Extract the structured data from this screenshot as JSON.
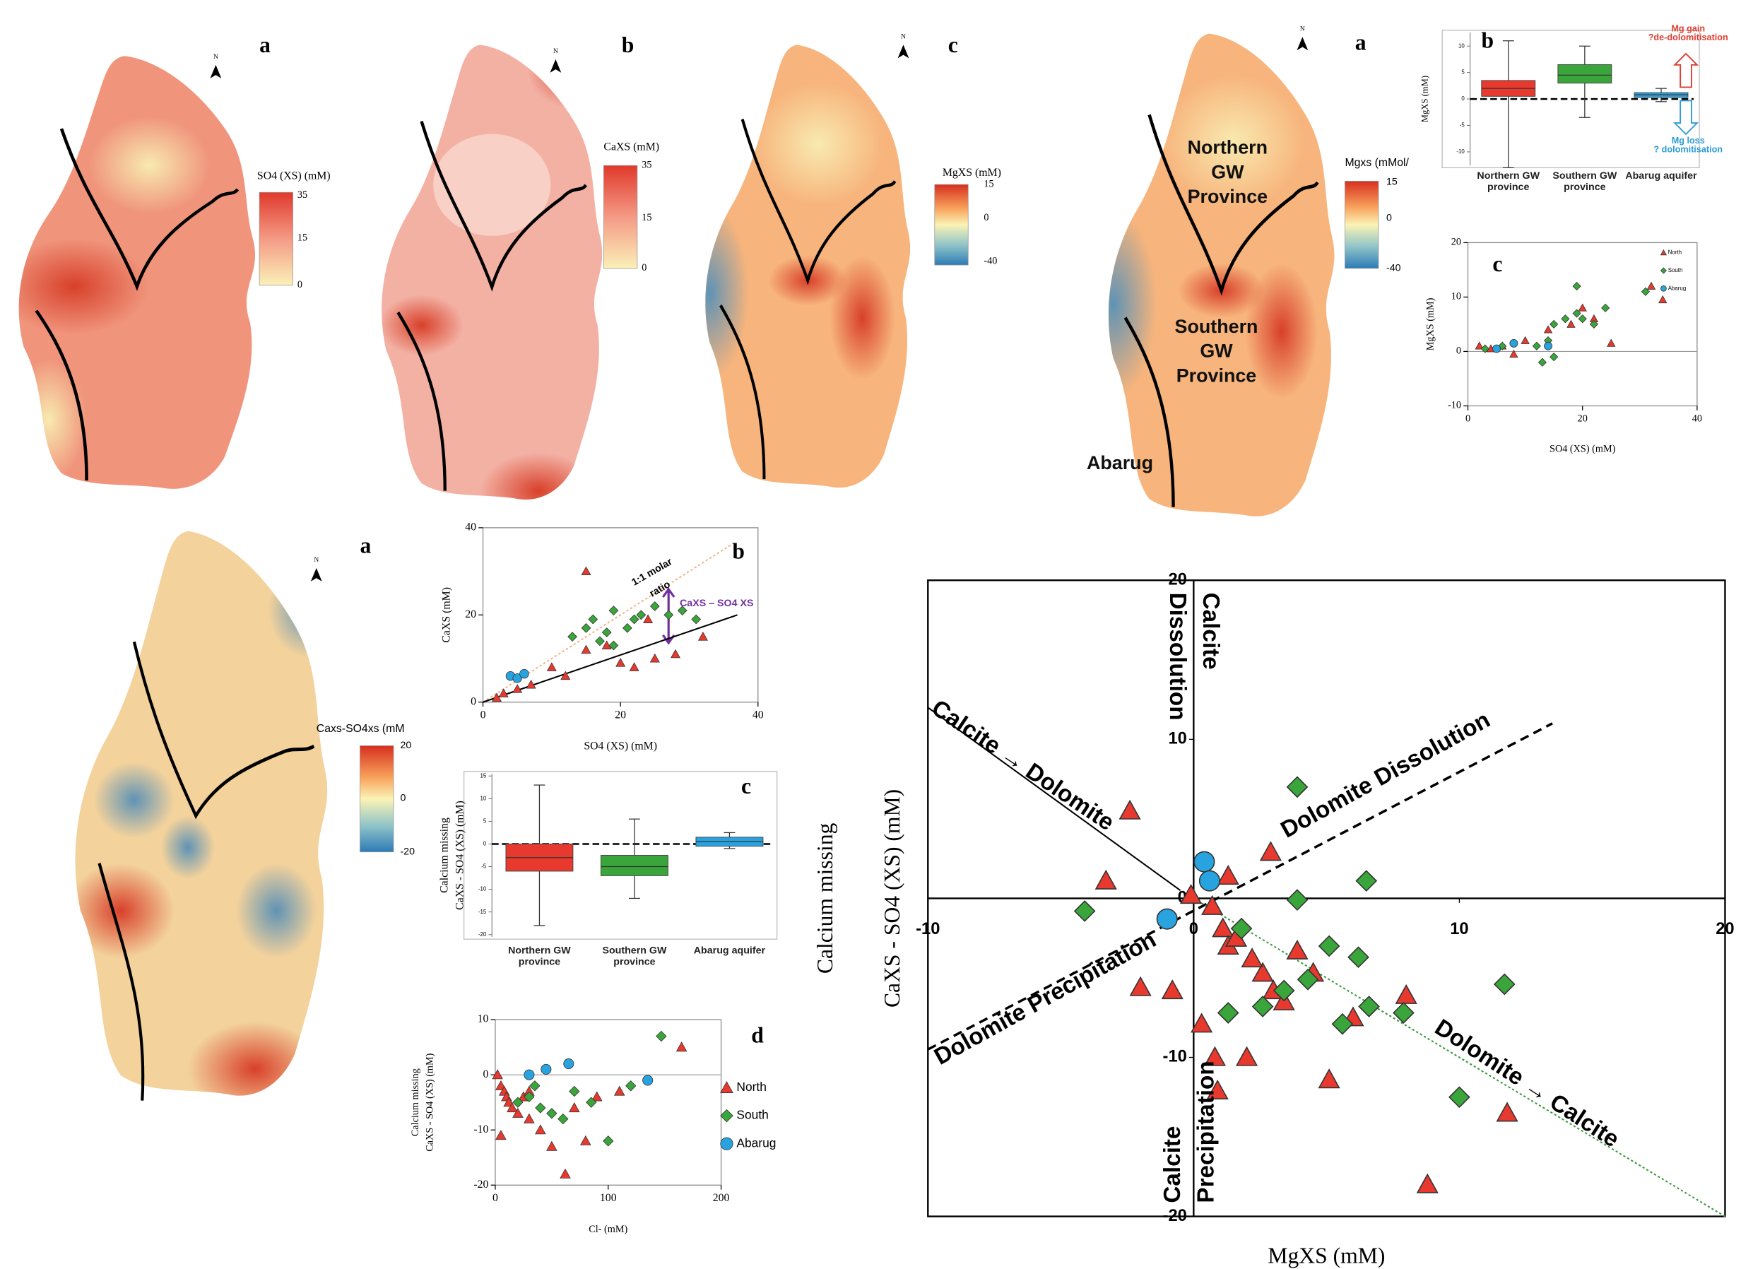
{
  "figure": {
    "north_symbol": "N",
    "maps": [
      {
        "label": "a",
        "colorbar_title": "SO4 (XS) (mM)",
        "colorbar_ticks": [
          35,
          15,
          0
        ]
      },
      {
        "label": "b",
        "colorbar_title": "CaXS (mM)",
        "colorbar_ticks": [
          35,
          15,
          0
        ]
      },
      {
        "label": "c",
        "colorbar_title": "MgXS (mM)",
        "colorbar_ticks": [
          15,
          0,
          -40
        ]
      },
      {
        "label": "a",
        "colorbar_title": "Mgxs (mMol/",
        "colorbar_ticks": [
          15,
          0,
          -40
        ],
        "region_labels": [
          {
            "lines": [
              "Northern",
              "GW",
              "Province"
            ]
          },
          {
            "lines": [
              "Southern",
              "GW",
              "Province"
            ]
          },
          {
            "lines": [
              "Abarug"
            ]
          }
        ]
      },
      {
        "label": "a",
        "colorbar_title": "Caxs-SO4xs (mM",
        "colorbar_ticks": [
          20,
          0,
          -20
        ]
      }
    ]
  },
  "chart_data": [
    {
      "type": "scatter",
      "xlabel": "MgXS (mM)",
      "ylabel": [
        "Calcium missing",
        "CaXS - SO4 (XS) (mM)"
      ],
      "xlim": [
        -10,
        20
      ],
      "xticks": [
        -10,
        0,
        10,
        20
      ],
      "ylim": [
        -20,
        20
      ],
      "yticks": [
        -20,
        -10,
        0,
        10,
        20
      ],
      "zero_lines": true,
      "reference_lines": [
        {
          "x": [
            -10,
            13.5
          ],
          "y": [
            -9.5,
            11
          ],
          "style": "dashed",
          "color": "#000000"
        },
        {
          "x": [
            -10,
            -0.5
          ],
          "y": [
            12,
            0.5
          ],
          "style": "solid",
          "color": "#000000"
        },
        {
          "x": [
            0,
            20
          ],
          "y": [
            0,
            -20
          ],
          "style": "dotted",
          "color": "#3a9a3a"
        }
      ],
      "annotations": [
        {
          "lines": [
            "Calcite",
            "Dissolution"
          ]
        },
        {
          "lines": [
            "Calcite → Dolomite"
          ]
        },
        {
          "lines": [
            "Dolomite Dissolution"
          ]
        },
        {
          "lines": [
            "Dolomite Precipitation"
          ]
        },
        {
          "lines": [
            "Dolomite → Calcite"
          ]
        },
        {
          "lines": [
            "Calcite",
            "Precipitation"
          ]
        }
      ],
      "series": [
        {
          "name": "North",
          "marker": "triangle",
          "color": "#e8392e",
          "x": [
            -2.4,
            -3.3,
            -2.0,
            -0.8,
            1.3,
            2.9,
            0.3,
            0.8,
            0.9,
            2.0,
            3.9,
            4.5,
            5.1,
            8.0,
            8.8,
            11.8,
            2.6,
            3.0,
            3.4,
            6.0,
            0.7,
            1.1,
            1.3,
            -0.1,
            1.6,
            2.2
          ],
          "values": [
            5.5,
            1.1,
            -5.6,
            -5.8,
            1.4,
            2.9,
            -7.9,
            -10,
            -12.1,
            -10,
            -3.3,
            -4.7,
            -11.4,
            -6.1,
            -18,
            -13.5,
            -4.7,
            -5.8,
            -6.5,
            -7.5,
            -0.5,
            -1.9,
            -3,
            0.2,
            -2.5,
            -3.8
          ]
        },
        {
          "name": "South",
          "marker": "diamond",
          "color": "#3aa53a",
          "x": [
            3.9,
            6.5,
            -4.1,
            11.7,
            10,
            6.6,
            5.6,
            7.9,
            5.1,
            6.2,
            3.9,
            1.3,
            2.6,
            3.4,
            1.8,
            4.3
          ],
          "values": [
            7,
            1.1,
            -0.8,
            -5.4,
            -12.5,
            -6.8,
            -7.9,
            -7.2,
            -3,
            -3.7,
            -0.1,
            -7.2,
            -6.8,
            -5.8,
            -1.9,
            -5.1
          ]
        },
        {
          "name": "Abarug",
          "marker": "circle",
          "color": "#29a3e0",
          "x": [
            0.4,
            0.6,
            -1.0
          ],
          "values": [
            2.3,
            1.1,
            -1.3
          ]
        }
      ]
    },
    {
      "type": "scatter",
      "label": "c",
      "xlabel": "SO4 (XS) (mM)",
      "ylabel": [
        "MgXS (mM)"
      ],
      "xlim": [
        0,
        40
      ],
      "xticks": [
        0,
        20,
        40
      ],
      "ylim": [
        -10,
        20
      ],
      "yticks": [
        -10,
        0,
        10,
        20
      ],
      "zero_lines": true,
      "legend": "upper right",
      "series": [
        {
          "name": "North",
          "marker": "triangle",
          "color": "#e8392e",
          "x": [
            2,
            4,
            6,
            8,
            10,
            14,
            18,
            20,
            22,
            25,
            32,
            34
          ],
          "values": [
            1,
            0.5,
            1,
            -0.5,
            2,
            4,
            5,
            8,
            6,
            1.5,
            12,
            9.5
          ]
        },
        {
          "name": "South",
          "marker": "diamond",
          "color": "#3aa53a",
          "x": [
            3,
            6,
            12,
            14,
            15,
            17,
            19,
            20,
            22,
            24,
            19,
            31,
            13,
            15
          ],
          "values": [
            0.5,
            1,
            1,
            2,
            5,
            6,
            7,
            6,
            5,
            8,
            12,
            11,
            -2,
            -1
          ]
        },
        {
          "name": "Abarug",
          "marker": "circle",
          "color": "#29a3e0",
          "x": [
            5,
            8,
            14
          ],
          "values": [
            0.5,
            1.5,
            1
          ]
        }
      ]
    },
    {
      "type": "box",
      "label": "b",
      "ylabel": [
        "MgXS (mM)"
      ],
      "ylim": [
        -13,
        13
      ],
      "yticks": [
        -10,
        -5,
        0,
        5,
        10
      ],
      "zero_line": true,
      "categories": [
        "Northern GW province",
        "Southern GW province",
        "Abarug aquifer"
      ],
      "colors": [
        "#e8392e",
        "#3aa53a",
        "#29a3e0"
      ],
      "min": [
        -13,
        -3.5,
        -0.5
      ],
      "q1": [
        0.5,
        3,
        0.3
      ],
      "median": [
        2,
        4.5,
        0.8
      ],
      "q3": [
        3.5,
        6.5,
        1.2
      ],
      "max": [
        11,
        10,
        2
      ],
      "annotations": [
        {
          "lines": [
            "Mg gain",
            "?de-dolomitisation"
          ],
          "color": "#e03c31"
        },
        {
          "lines": [
            "Mg loss",
            "? dolomitisation"
          ],
          "color": "#2e9bd6"
        }
      ]
    },
    {
      "type": "scatter",
      "label": "b",
      "xlabel": "SO4 (XS) (mM)",
      "ylabel": [
        "CaXS (mM)"
      ],
      "xlim": [
        0,
        40
      ],
      "xticks": [
        0,
        20,
        40
      ],
      "ylim": [
        0,
        40
      ],
      "yticks": [
        0,
        20,
        40
      ],
      "reference_lines": [
        {
          "x": [
            0,
            36
          ],
          "y": [
            0,
            36
          ],
          "style": "dotted",
          "color": "#f4b183"
        },
        {
          "x": [
            0,
            37
          ],
          "y": [
            0,
            20
          ],
          "style": "solid",
          "color": "#000000"
        }
      ],
      "annotations": [
        {
          "lines": [
            "1:1 molar",
            "ratio"
          ]
        },
        {
          "lines": [
            "CaXS – SO4 XS"
          ],
          "color": "#7030a0"
        }
      ],
      "series": [
        {
          "name": "North",
          "marker": "triangle",
          "color": "#e8392e",
          "x": [
            2,
            3,
            5,
            7,
            10,
            12,
            15,
            15,
            18,
            20,
            22,
            25,
            28,
            32,
            24
          ],
          "values": [
            1,
            2,
            3,
            4,
            8,
            6,
            30,
            12,
            13,
            9,
            8,
            10,
            11,
            15,
            19
          ]
        },
        {
          "name": "South",
          "marker": "diamond",
          "color": "#3aa53a",
          "x": [
            13,
            15,
            16,
            17,
            18,
            19,
            21,
            22,
            23,
            25,
            27,
            29,
            31,
            19
          ],
          "values": [
            15,
            17,
            19,
            14,
            16,
            21,
            17,
            19,
            20,
            22,
            20,
            21,
            19,
            13
          ]
        },
        {
          "name": "Abarug",
          "marker": "circle",
          "color": "#29a3e0",
          "x": [
            4,
            5,
            6
          ],
          "values": [
            6,
            5.5,
            6.5
          ]
        }
      ]
    },
    {
      "type": "box",
      "label": "c",
      "ylabel": [
        "Calcium missing",
        "CaXS - SO4 (XS) (mM)"
      ],
      "ylim": [
        -21,
        16
      ],
      "yticks": [
        -20,
        -15,
        -10,
        -5,
        0,
        5,
        10,
        15
      ],
      "zero_line": true,
      "categories": [
        "Northern GW province",
        "Southern GW province",
        "Abarug aquifer"
      ],
      "colors": [
        "#e8392e",
        "#3aa53a",
        "#29a3e0"
      ],
      "min": [
        -18,
        -12,
        -1
      ],
      "q1": [
        -6,
        -7,
        -0.5
      ],
      "median": [
        -3,
        -5,
        0.5
      ],
      "q3": [
        0,
        -2.5,
        1.5
      ],
      "max": [
        13,
        5.5,
        2.5
      ]
    },
    {
      "type": "scatter",
      "label": "d",
      "xlabel": "Cl- (mM)",
      "ylabel": [
        "Calcium missing",
        "CaXS - SO4 (XS) (mM)"
      ],
      "xlim": [
        0,
        200
      ],
      "xticks": [
        0,
        100,
        200
      ],
      "ylim": [
        -20,
        10
      ],
      "yticks": [
        -20,
        -10,
        0,
        10
      ],
      "zero_lines": true,
      "legend": "right",
      "series": [
        {
          "name": "North",
          "marker": "triangle",
          "color": "#e8392e",
          "x": [
            2,
            5,
            8,
            10,
            12,
            15,
            20,
            25,
            30,
            40,
            50,
            62,
            70,
            80,
            90,
            110,
            165,
            5,
            30
          ],
          "values": [
            0,
            -2,
            -3,
            -4,
            -5,
            -6,
            -7,
            -4,
            -8,
            -10,
            -13,
            -18,
            -6,
            -12,
            -4,
            -3,
            5,
            -11,
            -3
          ]
        },
        {
          "name": "South",
          "marker": "diamond",
          "color": "#3aa53a",
          "x": [
            20,
            30,
            40,
            50,
            70,
            85,
            100,
            120,
            147,
            35,
            60
          ],
          "values": [
            -5,
            -4,
            -6,
            -7,
            -3,
            -5,
            -12,
            -2,
            7,
            -2,
            -8
          ]
        },
        {
          "name": "Abarug",
          "marker": "circle",
          "color": "#29a3e0",
          "x": [
            30,
            45,
            65,
            135
          ],
          "values": [
            0,
            1,
            2,
            -1
          ]
        }
      ]
    }
  ]
}
